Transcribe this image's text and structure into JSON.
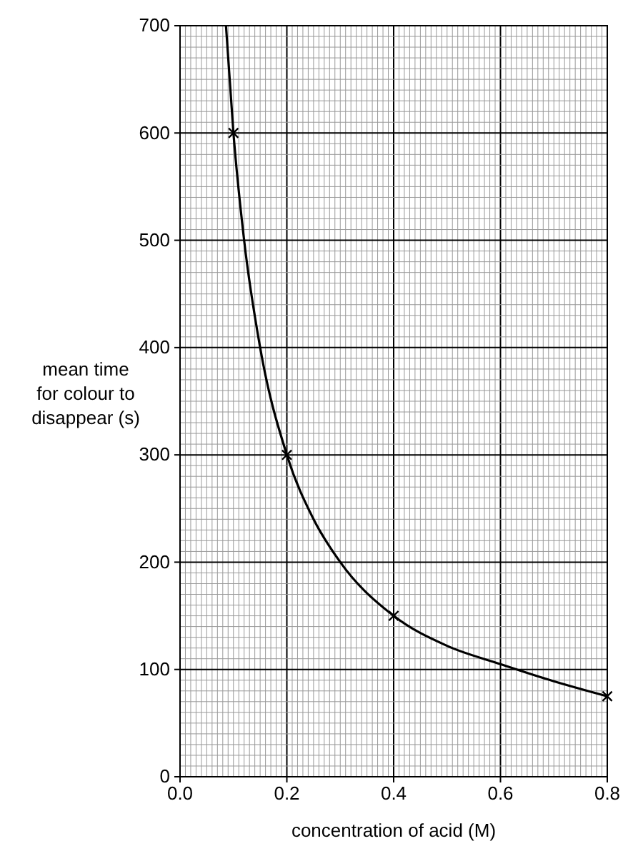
{
  "chart_data": {
    "type": "line",
    "xlabel": "concentration of acid (M)",
    "ylabel": "mean time for colour to disappear (s)",
    "xlim": [
      0,
      0.8
    ],
    "ylim": [
      0,
      700
    ],
    "grid": true,
    "xticks": [
      {
        "value": 0.0,
        "label": "0.0"
      },
      {
        "value": 0.01,
        "label": null
      },
      {
        "value": 0.02,
        "label": null
      },
      {
        "value": 0.03,
        "label": null
      },
      {
        "value": 0.04,
        "label": null
      },
      {
        "value": 0.05,
        "label": null
      },
      {
        "value": 0.06,
        "label": null
      },
      {
        "value": 0.07,
        "label": null
      },
      {
        "value": 0.08,
        "label": null
      },
      {
        "value": 0.09,
        "label": null
      },
      {
        "value": 0.1,
        "label": null
      },
      {
        "value": 0.11,
        "label": null
      },
      {
        "value": 0.12,
        "label": null
      },
      {
        "value": 0.13,
        "label": null
      },
      {
        "value": 0.14,
        "label": null
      },
      {
        "value": 0.15,
        "label": null
      },
      {
        "value": 0.16,
        "label": null
      },
      {
        "value": 0.17,
        "label": null
      },
      {
        "value": 0.18,
        "label": null
      },
      {
        "value": 0.19,
        "label": null
      },
      {
        "value": 0.2,
        "label": "0.2"
      },
      {
        "value": 0.21,
        "label": null
      },
      {
        "value": 0.22,
        "label": null
      },
      {
        "value": 0.23,
        "label": null
      },
      {
        "value": 0.24,
        "label": null
      },
      {
        "value": 0.25,
        "label": null
      },
      {
        "value": 0.26,
        "label": null
      },
      {
        "value": 0.27,
        "label": null
      },
      {
        "value": 0.28,
        "label": null
      },
      {
        "value": 0.29,
        "label": null
      },
      {
        "value": 0.3,
        "label": null
      },
      {
        "value": 0.31,
        "label": null
      },
      {
        "value": 0.32,
        "label": null
      },
      {
        "value": 0.33,
        "label": null
      },
      {
        "value": 0.34,
        "label": null
      },
      {
        "value": 0.35,
        "label": null
      },
      {
        "value": 0.36,
        "label": null
      },
      {
        "value": 0.37,
        "label": null
      },
      {
        "value": 0.38,
        "label": null
      },
      {
        "value": 0.39,
        "label": null
      },
      {
        "value": 0.4,
        "label": "0.4"
      },
      {
        "value": 0.41,
        "label": null
      },
      {
        "value": 0.42,
        "label": null
      },
      {
        "value": 0.43,
        "label": null
      },
      {
        "value": 0.44,
        "label": null
      },
      {
        "value": 0.45,
        "label": null
      },
      {
        "value": 0.46,
        "label": null
      },
      {
        "value": 0.47,
        "label": null
      },
      {
        "value": 0.48,
        "label": null
      },
      {
        "value": 0.49,
        "label": null
      },
      {
        "value": 0.5,
        "label": null
      },
      {
        "value": 0.51,
        "label": null
      },
      {
        "value": 0.52,
        "label": null
      },
      {
        "value": 0.53,
        "label": null
      },
      {
        "value": 0.54,
        "label": null
      },
      {
        "value": 0.55,
        "label": null
      },
      {
        "value": 0.56,
        "label": null
      },
      {
        "value": 0.57,
        "label": null
      },
      {
        "value": 0.58,
        "label": null
      },
      {
        "value": 0.59,
        "label": null
      },
      {
        "value": 0.6,
        "label": "0.6"
      },
      {
        "value": 0.61,
        "label": null
      },
      {
        "value": 0.62,
        "label": null
      },
      {
        "value": 0.63,
        "label": null
      },
      {
        "value": 0.64,
        "label": null
      },
      {
        "value": 0.65,
        "label": null
      },
      {
        "value": 0.66,
        "label": null
      },
      {
        "value": 0.67,
        "label": null
      },
      {
        "value": 0.68,
        "label": null
      },
      {
        "value": 0.69,
        "label": null
      },
      {
        "value": 0.7,
        "label": null
      },
      {
        "value": 0.71,
        "label": null
      },
      {
        "value": 0.72,
        "label": null
      },
      {
        "value": 0.73,
        "label": null
      },
      {
        "value": 0.74,
        "label": null
      },
      {
        "value": 0.75,
        "label": null
      },
      {
        "value": 0.76,
        "label": null
      },
      {
        "value": 0.77,
        "label": null
      },
      {
        "value": 0.78,
        "label": null
      },
      {
        "value": 0.79,
        "label": null
      },
      {
        "value": 0.8,
        "label": "0.8"
      }
    ],
    "yticks": [
      0,
      {
        "value": 10,
        "label": null
      },
      {
        "value": 20,
        "label": null
      },
      {
        "value": 30,
        "label": null
      },
      {
        "value": 40,
        "label": null
      },
      {
        "value": 50,
        "label": null
      },
      {
        "value": 60,
        "label": null
      },
      {
        "value": 70,
        "label": null
      },
      {
        "value": 80,
        "label": null
      },
      {
        "value": 90,
        "label": null
      },
      100,
      {
        "value": 110,
        "label": null
      },
      {
        "value": 120,
        "label": null
      },
      {
        "value": 130,
        "label": null
      },
      {
        "value": 140,
        "label": null
      },
      {
        "value": 150,
        "label": null
      },
      {
        "value": 160,
        "label": null
      },
      {
        "value": 170,
        "label": null
      },
      {
        "value": 180,
        "label": null
      },
      {
        "value": 190,
        "label": null
      },
      200,
      {
        "value": 210,
        "label": null
      },
      {
        "value": 220,
        "label": null
      },
      {
        "value": 230,
        "label": null
      },
      {
        "value": 240,
        "label": null
      },
      {
        "value": 250,
        "label": null
      },
      {
        "value": 260,
        "label": null
      },
      {
        "value": 270,
        "label": null
      },
      {
        "value": 280,
        "label": null
      },
      {
        "value": 290,
        "label": null
      },
      300,
      {
        "value": 310,
        "label": null
      },
      {
        "value": 320,
        "label": null
      },
      {
        "value": 330,
        "label": null
      },
      {
        "value": 340,
        "label": null
      },
      {
        "value": 350,
        "label": null
      },
      {
        "value": 360,
        "label": null
      },
      {
        "value": 370,
        "label": null
      },
      {
        "value": 380,
        "label": null
      },
      {
        "value": 390,
        "label": null
      },
      400,
      {
        "value": 410,
        "label": null
      },
      {
        "value": 420,
        "label": null
      },
      {
        "value": 430,
        "label": null
      },
      {
        "value": 440,
        "label": null
      },
      {
        "value": 450,
        "label": null
      },
      {
        "value": 460,
        "label": null
      },
      {
        "value": 470,
        "label": null
      },
      {
        "value": 480,
        "label": null
      },
      {
        "value": 490,
        "label": null
      },
      500,
      {
        "value": 510,
        "label": null
      },
      {
        "value": 520,
        "label": null
      },
      {
        "value": 530,
        "label": null
      },
      {
        "value": 540,
        "label": null
      },
      {
        "value": 550,
        "label": null
      },
      {
        "value": 560,
        "label": null
      },
      {
        "value": 570,
        "label": null
      },
      {
        "value": 580,
        "label": null
      },
      {
        "value": 590,
        "label": null
      },
      600,
      {
        "value": 610,
        "label": null
      },
      {
        "value": 620,
        "label": null
      },
      {
        "value": 630,
        "label": null
      },
      {
        "value": 640,
        "label": null
      },
      {
        "value": 650,
        "label": null
      },
      {
        "value": 660,
        "label": null
      },
      {
        "value": 670,
        "label": null
      },
      {
        "value": 680,
        "label": null
      },
      {
        "value": 690,
        "label": null
      },
      700
    ],
    "series": [
      {
        "color": "#000000",
        "marker": "none",
        "x": [
          0.086,
          0.1,
          0.12,
          0.15,
          0.2,
          0.25,
          0.3,
          0.4,
          0.5,
          0.6,
          0.7,
          0.8
        ],
        "values": [
          700,
          600,
          500,
          400,
          300,
          240,
          200,
          150,
          122,
          105,
          89,
          75
        ]
      },
      {
        "type": "scatter",
        "color": "#000000",
        "marker": "cross",
        "x": [
          0.1,
          0.2,
          0.4,
          0.8
        ],
        "values": [
          600,
          300,
          150,
          75
        ]
      }
    ]
  }
}
